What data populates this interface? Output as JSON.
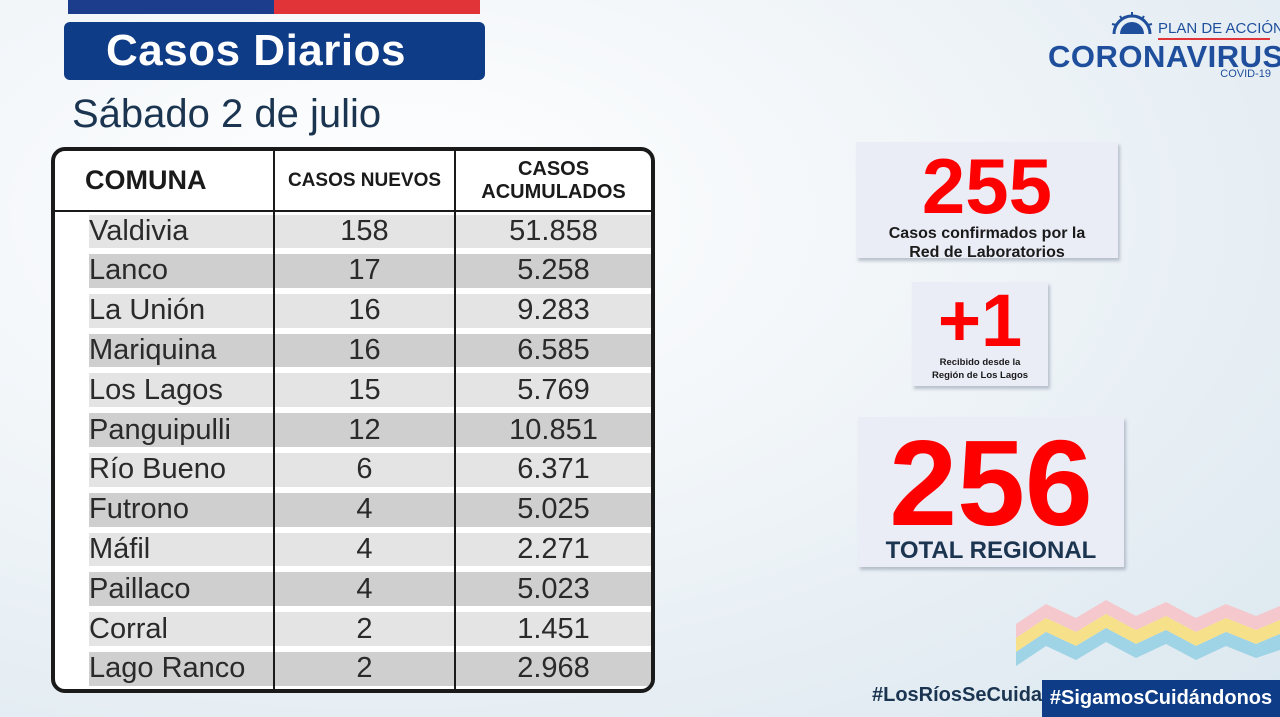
{
  "header": {
    "title": "Casos Diarios",
    "date": "Sábado 2 de julio"
  },
  "logo": {
    "plan": "PLAN DE ACCIÓN",
    "name": "CORONAVIRUS",
    "sub": "COVID-19"
  },
  "table": {
    "headers": [
      "COMUNA",
      "CASOS NUEVOS",
      "CASOS ACUMULADOS"
    ],
    "header_acum_line1": "CASOS",
    "header_acum_line2": "ACUMULADOS",
    "rows": [
      {
        "comuna": "Valdivia",
        "nuevos": "158",
        "acumulados": "51.858"
      },
      {
        "comuna": "Lanco",
        "nuevos": "17",
        "acumulados": "5.258"
      },
      {
        "comuna": "La Unión",
        "nuevos": "16",
        "acumulados": "9.283"
      },
      {
        "comuna": "Mariquina",
        "nuevos": "16",
        "acumulados": "6.585"
      },
      {
        "comuna": "Los Lagos",
        "nuevos": "15",
        "acumulados": "5.769"
      },
      {
        "comuna": "Panguipulli",
        "nuevos": "12",
        "acumulados": "10.851"
      },
      {
        "comuna": "Río Bueno",
        "nuevos": "6",
        "acumulados": "6.371"
      },
      {
        "comuna": "Futrono",
        "nuevos": "4",
        "acumulados": "5.025"
      },
      {
        "comuna": "Máfil",
        "nuevos": "4",
        "acumulados": "2.271"
      },
      {
        "comuna": "Paillaco",
        "nuevos": "4",
        "acumulados": "5.023"
      },
      {
        "comuna": "Corral",
        "nuevos": "2",
        "acumulados": "1.451"
      },
      {
        "comuna": "Lago Ranco",
        "nuevos": "2",
        "acumulados": "2.968"
      }
    ]
  },
  "stats": {
    "lab": {
      "value": "255",
      "label_line1": "Casos confirmados  por la",
      "label_line2": "Red de Laboratorios"
    },
    "received": {
      "value": "+1",
      "label_line1": "Recibido  desde la",
      "label_line2": "Región de Los Lagos"
    },
    "total": {
      "value": "256",
      "label": "TOTAL REGIONAL"
    }
  },
  "hashtags": {
    "first": "#LosRíosSeCuida",
    "second": "#SigamosCuidándonos"
  },
  "colors": {
    "brand_blue": "#0f3c86",
    "accent_red": "#ff0000",
    "flag_red": "#e03438"
  }
}
